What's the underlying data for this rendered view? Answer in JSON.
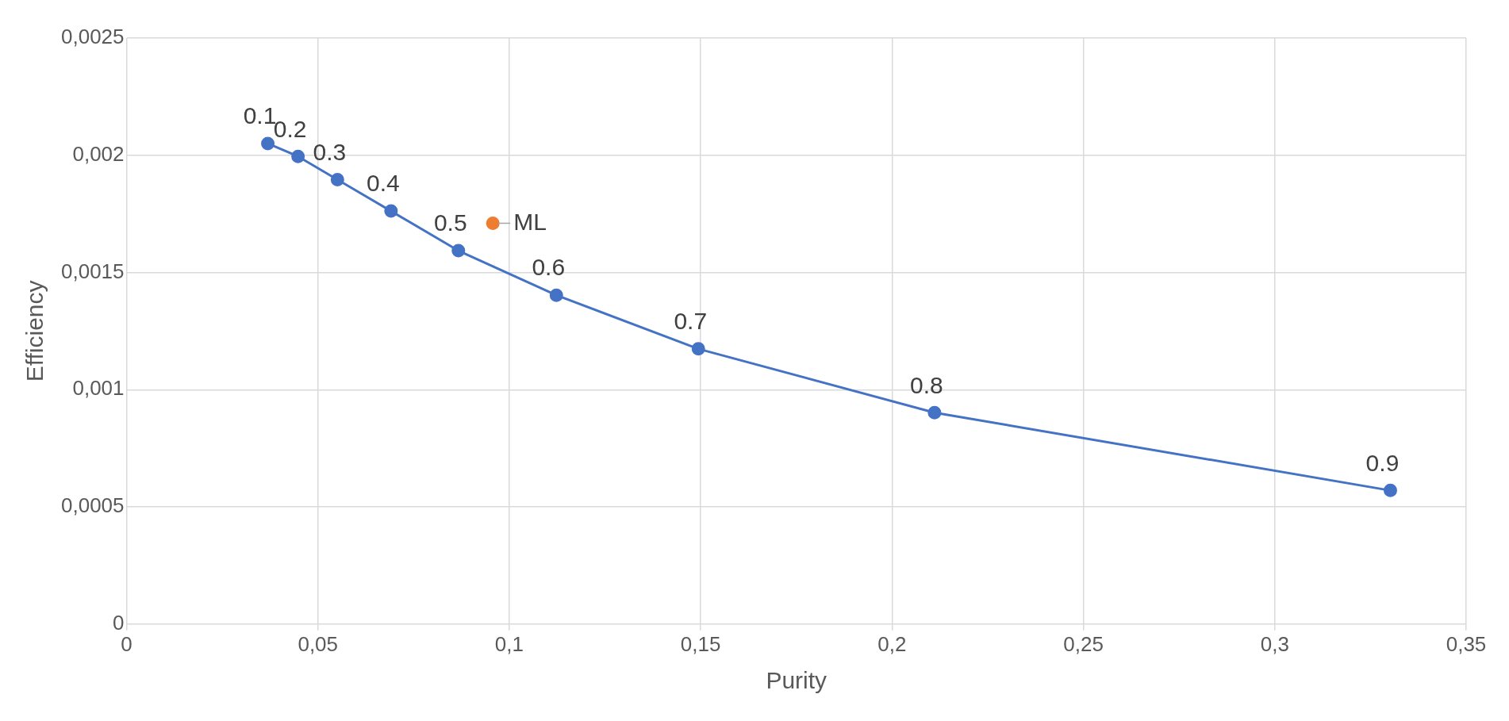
{
  "chart_data": {
    "type": "line",
    "xlabel": "Purity",
    "ylabel": "Efficiency",
    "xlim": [
      0,
      0.35
    ],
    "xticks": [
      0,
      {
        "value": 0.05,
        "label": "0,05"
      },
      {
        "value": 0.1,
        "label": "0,1"
      },
      {
        "value": 0.15,
        "label": "0,15"
      },
      {
        "value": 0.2,
        "label": "0,2"
      },
      {
        "value": 0.25,
        "label": "0,25"
      },
      {
        "value": 0.3,
        "label": "0,3"
      },
      {
        "value": 0.35,
        "label": "0,35"
      }
    ],
    "ylim": [
      0,
      0.0025
    ],
    "yticks": [
      0,
      {
        "value": 0.0005,
        "label": "0,0005"
      },
      {
        "value": 0.001,
        "label": "0,001"
      },
      {
        "value": 0.0015,
        "label": "0,0015"
      },
      {
        "value": 0.002,
        "label": "0,002"
      },
      {
        "value": 0.0025,
        "label": "0,0025"
      }
    ],
    "grid": true,
    "legend": false,
    "marker": "circle",
    "series": [
      {
        "color": "#4472c4",
        "x": [
          0.0369,
          0.0448,
          0.0551,
          0.0691,
          0.0867,
          0.1123,
          0.1494,
          0.2111,
          0.3302
        ],
        "values": [
          0.00205,
          0.001995,
          0.001896,
          0.001762,
          0.001593,
          0.001403,
          0.001174,
          0.000902,
          0.00057
        ]
      },
      {
        "type": "scatter",
        "name": "ML",
        "color": "#ed7d31",
        "x": [
          0.0957
        ],
        "values": [
          0.00171
        ]
      }
    ],
    "annotations": [
      {
        "text": "0.1",
        "x": 0.0369,
        "y": 0.00205
      },
      {
        "text": "0.2",
        "x": 0.0448,
        "y": 0.001995
      },
      {
        "text": "0.3",
        "x": 0.0551,
        "y": 0.001896
      },
      {
        "text": "0.4",
        "x": 0.0691,
        "y": 0.001762
      },
      {
        "text": "0.5",
        "x": 0.0867,
        "y": 0.001593
      },
      {
        "text": "0.6",
        "x": 0.1123,
        "y": 0.001403
      },
      {
        "text": "0.7",
        "x": 0.1494,
        "y": 0.001174
      },
      {
        "text": "0.8",
        "x": 0.2111,
        "y": 0.000902
      },
      {
        "text": "0.9",
        "x": 0.3302,
        "y": 0.00057
      }
    ]
  }
}
